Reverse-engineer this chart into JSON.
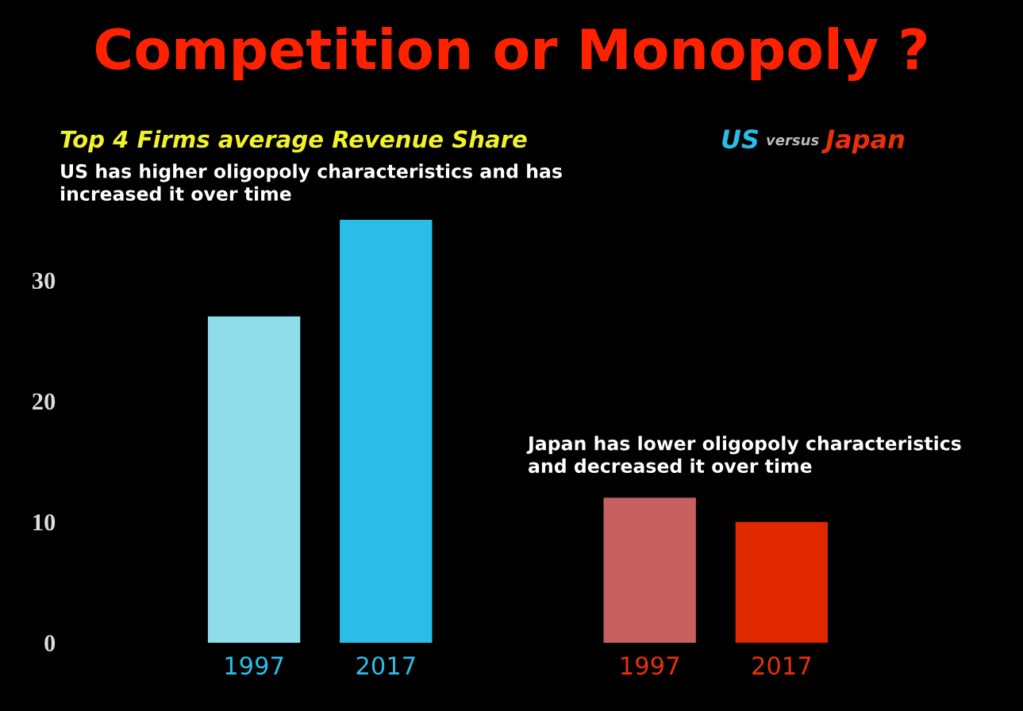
{
  "chart_data": {
    "type": "bar",
    "title": "Competition or Monopoly ?",
    "subtitle": "Top 4 Firms average Revenue Share",
    "categories": [
      "1997",
      "2017",
      null,
      "1997",
      "2017"
    ],
    "series": [
      {
        "name": "US",
        "color": "#2bbde8",
        "colors": [
          "#8fdcea",
          "#2bbde8",
          null,
          null,
          null
        ],
        "values": [
          27,
          35,
          null,
          null,
          null
        ]
      },
      {
        "name": "Japan",
        "color": "#e8300c",
        "colors": [
          null,
          null,
          null,
          "#c86060",
          "#e02800"
        ],
        "values": [
          null,
          null,
          null,
          12,
          10
        ]
      }
    ],
    "ylim": [
      0,
      35
    ],
    "yticks": [
      0,
      10,
      20,
      30
    ],
    "grid": false,
    "legend": "top right",
    "annotations": [
      "US has higher oligopoly characteristics and has\nincreased it over time",
      "Japan has lower oligopoly characteristics\nand decreased it over time",
      "versus"
    ]
  }
}
